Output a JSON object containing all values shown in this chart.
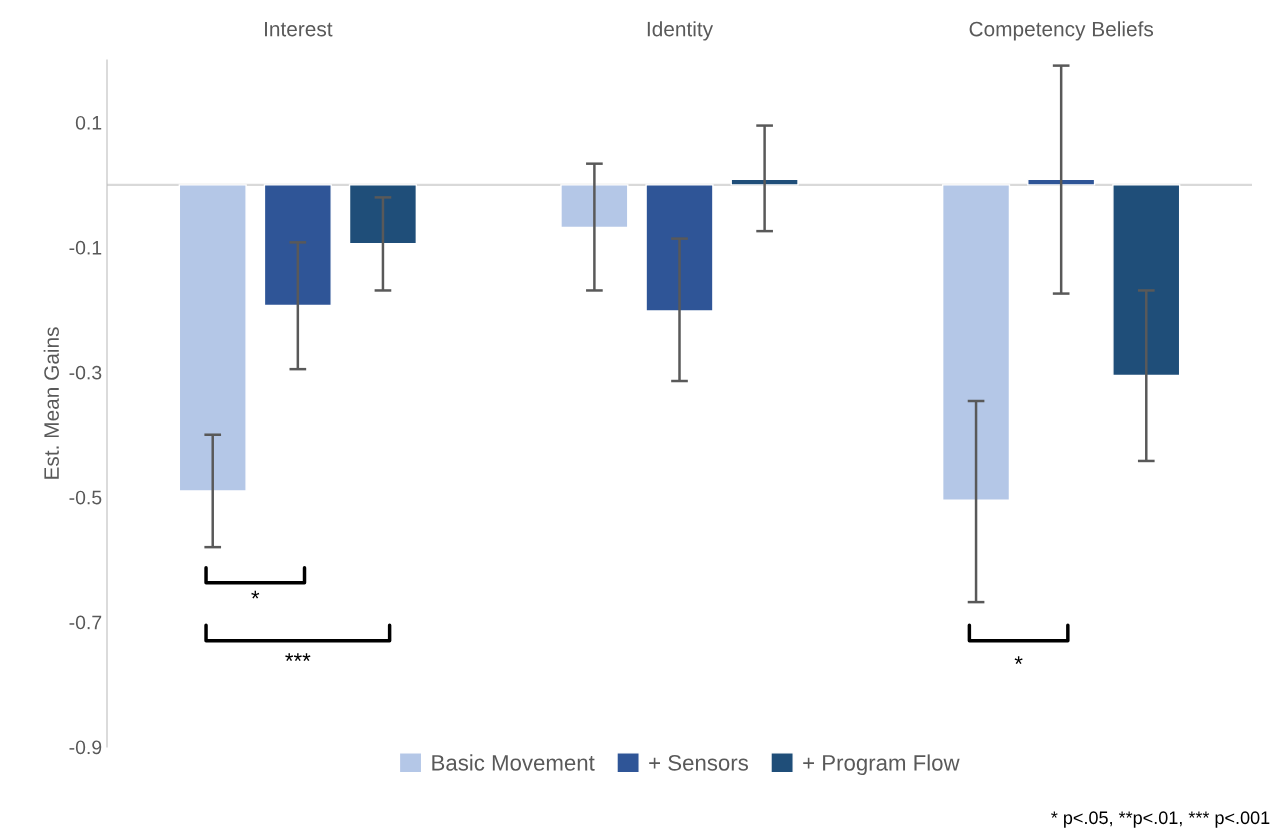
{
  "chart_data": {
    "type": "bar",
    "ylabel": "Est. Mean Gains",
    "categories": [
      "Interest",
      "Identity",
      "Competency Beliefs"
    ],
    "series": [
      {
        "name": "Basic Movement",
        "color": "#b4c7e7",
        "values": [
          -0.49,
          -0.068,
          -0.505
        ],
        "errors": [
          [
            -0.58,
            -0.4
          ],
          [
            -0.169,
            0.034
          ],
          [
            -0.668,
            -0.346
          ]
        ]
      },
      {
        "name": "+ Sensors",
        "color": "#2f5597",
        "values": [
          -0.193,
          -0.202,
          0.009
        ],
        "errors": [
          [
            -0.295,
            -0.092
          ],
          [
            -0.314,
            -0.086
          ],
          [
            -0.174,
            0.191
          ]
        ]
      },
      {
        "name": "+ Program Flow",
        "color": "#1f4e79",
        "values": [
          -0.094,
          0.009,
          -0.305
        ],
        "errors": [
          [
            -0.169,
            -0.02
          ],
          [
            -0.074,
            0.095
          ],
          [
            -0.442,
            -0.169
          ]
        ]
      }
    ],
    "ylim": [
      -0.9,
      0.2
    ],
    "yticks": [
      0.1,
      -0.1,
      -0.3,
      -0.5,
      -0.7,
      -0.9
    ],
    "ref_lines": [
      {
        "axis": "y",
        "value": 0,
        "color": "#d9d9d9"
      }
    ],
    "legend": "bottom",
    "grid": false,
    "annotations": [
      "*",
      "***",
      "*",
      "* p<.05, **p<.01, *** p<.001"
    ]
  }
}
